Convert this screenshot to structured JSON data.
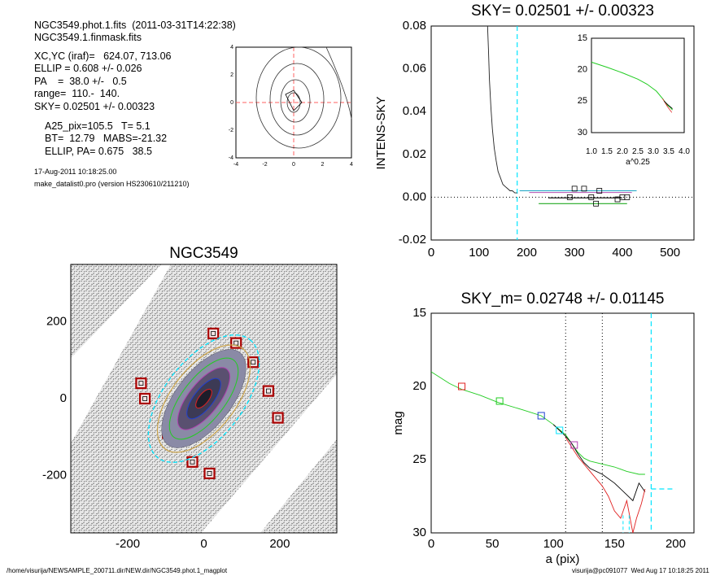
{
  "info": {
    "file_line": "NGC3549.phot.1.fits  (2011-03-31T14:22:38)",
    "mask_line": "NGC3549.1.finmask.fits",
    "xcyc_line": "XC,YC (iraf)=   624.07, 713.06",
    "ellip_line": "ELLIP = 0.608 +/- 0.026",
    "pa_line": "PA    =  38.0 +/-   0.5",
    "range_line": "range=  110.-  140.",
    "sky_line": "SKY= 0.02501 +/- 0.00323",
    "a25_line": "A25_pix=105.5   T= 5.1",
    "bt_line": "BT=  12.79   MABS=-21.32",
    "ellippa_line": "ELLIP, PA= 0.675   38.5",
    "date_line": "17-Aug-2011 10:18:25.00",
    "prog_line": "make_datalist0.pro (version HS230610/211210)"
  },
  "footer": {
    "left": "/home/visurija/NEWSAMPLE_200711.dir/NEW.dir/NGC3549.phot.1_magplot",
    "right": "visurija@pc091077  Wed Aug 17 10:18:25 2011"
  },
  "colors": {
    "axis": "#000000",
    "cyan": "#00e5ff",
    "red_dash": "#ff6060",
    "green": "#22cc22",
    "red": "#e02020",
    "blue": "#2040d0",
    "magenta": "#b040b0",
    "mask_red": "#aa0000"
  },
  "chart_data": [
    {
      "id": "psf-contour",
      "type": "contour",
      "title": "",
      "xlim": [
        -4,
        4
      ],
      "ylim": [
        -4,
        4
      ],
      "xticks": [
        "-4",
        "-2",
        "0",
        "2",
        "4"
      ],
      "yticks": [
        "-4",
        "-2",
        "0",
        "2",
        "4"
      ]
    },
    {
      "id": "intens-sky",
      "type": "line",
      "title": "SKY= 0.02501 +/- 0.00323",
      "xlabel": "",
      "ylabel": "INTENS-SKY",
      "xlim": [
        0,
        550
      ],
      "ylim": [
        -0.02,
        0.08
      ],
      "xticks": [
        "0",
        "100",
        "200",
        "300",
        "400",
        "500"
      ],
      "yticks": [
        "0.08",
        "0.06",
        "0.04",
        "0.02",
        "0.00",
        "-0.02"
      ],
      "sky_radius": 180,
      "profile": {
        "x": [
          118,
          120,
          122,
          125,
          128,
          132,
          136,
          140,
          145,
          150,
          155,
          160,
          165,
          170,
          175,
          180
        ],
        "y": [
          0.08,
          0.068,
          0.055,
          0.042,
          0.032,
          0.023,
          0.017,
          0.012,
          0.009,
          0.006,
          0.005,
          0.004,
          0.003,
          0.003,
          0.002,
          0.002
        ]
      },
      "sky_squares": {
        "x": [
          290,
          300,
          320,
          335,
          345,
          352,
          390,
          400,
          410
        ],
        "y": [
          0.0,
          0.004,
          0.004,
          0.0,
          -0.003,
          0.003,
          -0.001,
          0.0,
          0.0
        ]
      },
      "inset": {
        "xlim": [
          1.0,
          4.0
        ],
        "ylim": [
          30,
          15
        ],
        "xlabel": "a^0.25",
        "xticks": [
          "1.0",
          "1.5",
          "2.0",
          "2.5",
          "3.0",
          "3.5",
          "4.0"
        ],
        "yticks": [
          "15",
          "20",
          "25",
          "30"
        ],
        "profile": {
          "x": [
            1.0,
            1.5,
            2.0,
            2.5,
            2.8,
            3.1,
            3.3,
            3.45,
            3.55,
            3.62
          ],
          "y": [
            18.8,
            19.6,
            20.5,
            21.5,
            22.3,
            23.4,
            24.6,
            25.6,
            26.0,
            26.4
          ]
        }
      }
    },
    {
      "id": "galaxy-image",
      "type": "image",
      "title": "NGC3549",
      "xlim": [
        -350,
        350
      ],
      "ylim": [
        -350,
        350
      ],
      "xticks": [
        "-200",
        "0",
        "200"
      ],
      "yticks": [
        "200",
        "0",
        "-200"
      ],
      "mask_boxes": [
        [
          25,
          170
        ],
        [
          85,
          145
        ],
        [
          130,
          95
        ],
        [
          -165,
          40
        ],
        [
          -155,
          0
        ],
        [
          170,
          20
        ],
        [
          195,
          -50
        ],
        [
          -95,
          -90
        ],
        [
          -30,
          -165
        ],
        [
          15,
          -195
        ]
      ]
    },
    {
      "id": "mag-profile",
      "type": "line",
      "title": "SKY_m=  0.02748 +/- 0.01145",
      "xlabel": "a (pix)",
      "ylabel": "mag",
      "xlim": [
        0,
        215
      ],
      "ylim": [
        30,
        15
      ],
      "xticks": [
        "0",
        "50",
        "100",
        "150",
        "200"
      ],
      "yticks": [
        "15",
        "20",
        "25",
        "30"
      ],
      "range_lines": [
        110,
        140
      ],
      "sky_radius": 180,
      "series": [
        {
          "color": "green",
          "x": [
            0,
            15,
            25,
            40,
            55,
            75,
            90,
            100,
            110,
            115,
            120,
            125,
            130,
            140,
            150,
            160,
            170,
            175
          ],
          "y": [
            19.0,
            19.8,
            20.2,
            20.6,
            21.1,
            21.6,
            22.0,
            22.6,
            23.3,
            23.9,
            24.5,
            24.9,
            25.1,
            25.3,
            25.5,
            25.8,
            26.0,
            26.0
          ]
        },
        {
          "color": "black",
          "x": [
            100,
            105,
            110,
            115,
            120,
            125,
            130,
            140,
            150,
            160,
            165,
            170,
            175
          ],
          "y": [
            22.6,
            23.0,
            23.4,
            23.9,
            24.6,
            25.2,
            25.6,
            26.0,
            26.6,
            27.4,
            27.8,
            26.6,
            27.2
          ]
        },
        {
          "color": "red",
          "x": [
            110,
            120,
            130,
            140,
            145,
            150,
            155,
            160,
            165,
            168,
            172,
            175
          ],
          "y": [
            23.5,
            24.8,
            25.8,
            26.8,
            27.5,
            28.5,
            29.0,
            27.8,
            30.0,
            29.0,
            28.0,
            27.0
          ]
        }
      ],
      "markers": [
        {
          "color": "red",
          "x": 25,
          "y": 20.0
        },
        {
          "color": "green",
          "x": 56,
          "y": 21.0
        },
        {
          "color": "blue",
          "x": 90,
          "y": 22.0
        },
        {
          "color": "cyan",
          "x": 105,
          "y": 23.0
        },
        {
          "color": "magenta",
          "x": 117,
          "y": 24.0
        }
      ],
      "sky_level": {
        "x": [
          180,
          200
        ],
        "y": 27.0
      }
    }
  ]
}
